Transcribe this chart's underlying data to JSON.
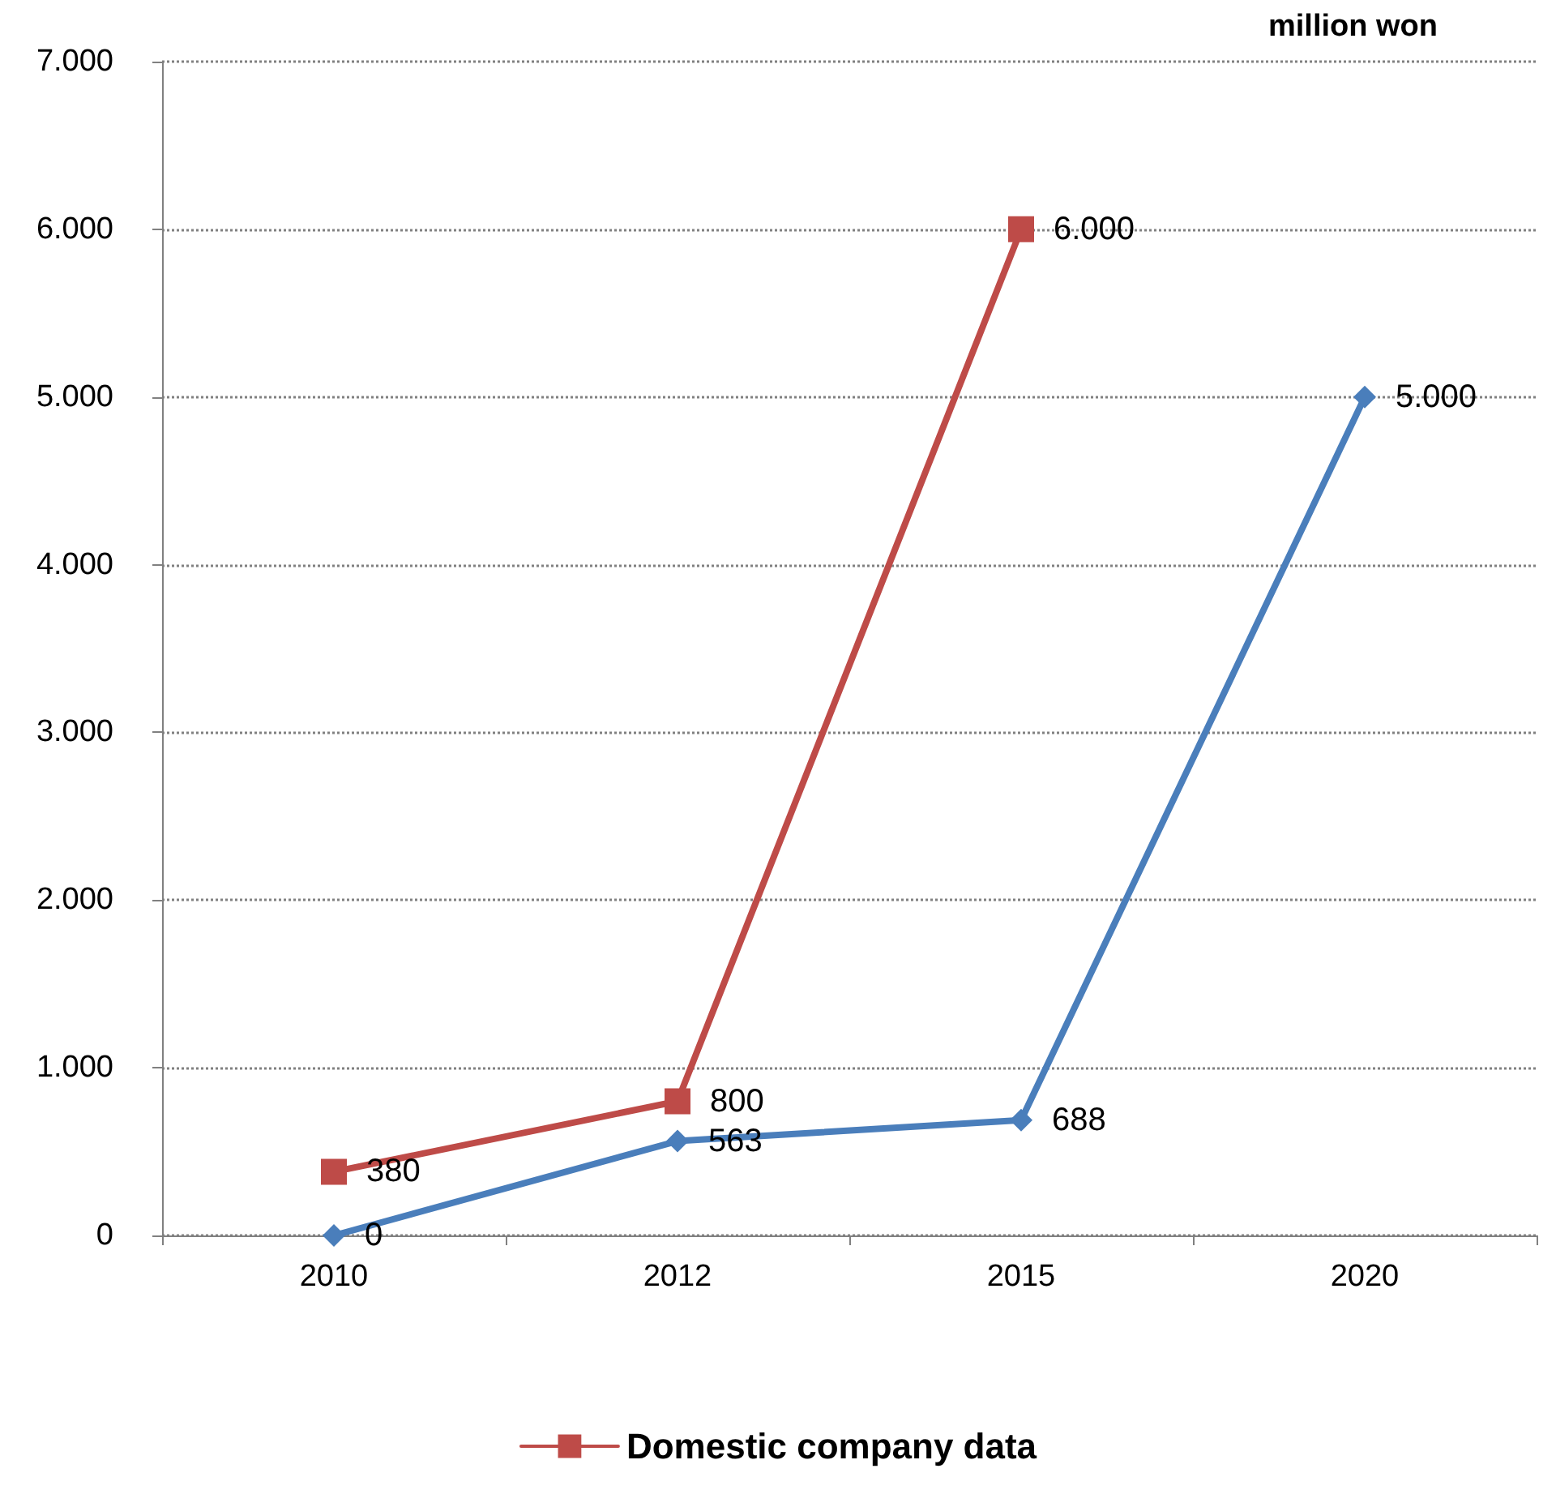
{
  "chart_data": {
    "type": "line",
    "title": "million won",
    "categories": [
      "2010",
      "2012",
      "2015",
      "2020"
    ],
    "series": [
      {
        "color": "#4a7ebb",
        "marker": "diamond",
        "values": [
          0,
          563,
          688,
          5000
        ],
        "value_labels": [
          "0",
          "563",
          "688",
          "5.000"
        ]
      },
      {
        "name": "Domestic company data",
        "color": "#be4b48",
        "marker": "square",
        "values": [
          380,
          800,
          6000,
          null
        ],
        "value_labels": [
          "380",
          "800",
          "6.000",
          null
        ]
      }
    ],
    "ylim": [
      0,
      7000
    ],
    "yticks": [
      {
        "value": 0,
        "label": "0"
      },
      {
        "value": 1000,
        "label": "1.000"
      },
      {
        "value": 2000,
        "label": "2.000"
      },
      {
        "value": 3000,
        "label": "3.000"
      },
      {
        "value": 4000,
        "label": "4.000"
      },
      {
        "value": 5000,
        "label": "5.000"
      },
      {
        "value": 6000,
        "label": "6.000"
      },
      {
        "value": 7000,
        "label": "7.000"
      }
    ],
    "grid": "y",
    "legend": "bottom",
    "line_style": "solid"
  }
}
